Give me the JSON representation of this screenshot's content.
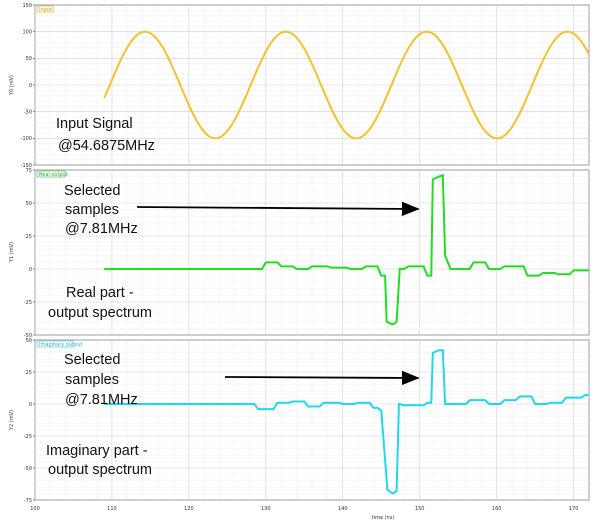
{
  "chart_data": [
    {
      "type": "line",
      "legend": "Input",
      "ylabel": "Y0 (mV)",
      "ylim": [
        -150,
        150
      ],
      "yticks": [
        "150",
        "100",
        "50",
        "0",
        "-50",
        "-100",
        "-150"
      ],
      "color": "#f2c12e",
      "x": [
        100,
        172
      ],
      "amplitude": 100,
      "peaks_at": [
        114.3,
        132.6,
        151.0,
        169.2
      ],
      "annotation": [
        "Input Signal",
        "@54.6875MHz"
      ]
    },
    {
      "type": "line",
      "legend": "Real output",
      "ylabel": "Y1 (mV)",
      "ylim": [
        -50,
        75
      ],
      "yticks": [
        "75",
        "50",
        "25",
        "0",
        "-25",
        "-50"
      ],
      "color": "#22dd22",
      "series": [
        {
          "name": "Real output",
          "points": [
            [
              109.0,
              0
            ],
            [
              129.5,
              0
            ],
            [
              130.0,
              5
            ],
            [
              131.5,
              5
            ],
            [
              132.0,
              2
            ],
            [
              133.5,
              2
            ],
            [
              134.0,
              0
            ],
            [
              135.5,
              0
            ],
            [
              136.0,
              2
            ],
            [
              138.0,
              2
            ],
            [
              138.5,
              1
            ],
            [
              140.5,
              1
            ],
            [
              141.0,
              0
            ],
            [
              142.5,
              0
            ],
            [
              143.0,
              2
            ],
            [
              144.5,
              2
            ],
            [
              145.0,
              -5
            ],
            [
              145.5,
              -5
            ],
            [
              145.7,
              -40
            ],
            [
              146.5,
              -42
            ],
            [
              147.0,
              -40
            ],
            [
              147.4,
              0
            ],
            [
              148.0,
              0
            ],
            [
              148.5,
              2
            ],
            [
              150.5,
              2
            ],
            [
              151.0,
              -5
            ],
            [
              151.5,
              -5
            ],
            [
              151.7,
              68
            ],
            [
              152.5,
              70
            ],
            [
              153.0,
              71
            ],
            [
              153.3,
              10
            ],
            [
              154.0,
              0
            ],
            [
              156.5,
              0
            ],
            [
              157.0,
              5
            ],
            [
              158.5,
              5
            ],
            [
              159.0,
              0
            ],
            [
              160.5,
              0
            ],
            [
              161.0,
              2
            ],
            [
              163.5,
              2
            ],
            [
              164.0,
              -5
            ],
            [
              165.5,
              -5
            ],
            [
              166.0,
              -3
            ],
            [
              167.5,
              -3
            ],
            [
              168.0,
              -4
            ],
            [
              169.5,
              -4
            ],
            [
              170.0,
              -1
            ],
            [
              172.0,
              -1
            ]
          ]
        }
      ],
      "annotation": [
        "Selected",
        "samples",
        "@7.81MHz",
        "Real part -",
        "output spectrum"
      ]
    },
    {
      "type": "line",
      "legend": "Imaginary output",
      "ylabel": "Y2 (mV)",
      "ylim": [
        -75,
        50
      ],
      "yticks": [
        "50",
        "25",
        "0",
        "-25",
        "-50",
        "-75"
      ],
      "color": "#22d8e8",
      "series": [
        {
          "name": "Imaginary output",
          "points": [
            [
              109.0,
              0
            ],
            [
              128.5,
              0
            ],
            [
              129.0,
              -4
            ],
            [
              131.0,
              -4
            ],
            [
              131.5,
              1
            ],
            [
              133.0,
              1
            ],
            [
              133.5,
              2
            ],
            [
              135.0,
              2
            ],
            [
              135.5,
              -2
            ],
            [
              137.0,
              -2
            ],
            [
              137.5,
              1
            ],
            [
              139.5,
              1
            ],
            [
              140.0,
              0
            ],
            [
              141.5,
              0
            ],
            [
              142.0,
              1
            ],
            [
              143.5,
              1
            ],
            [
              144.0,
              -3
            ],
            [
              144.5,
              -3
            ],
            [
              145.0,
              -5
            ],
            [
              145.8,
              -67
            ],
            [
              146.5,
              -70
            ],
            [
              147.0,
              -68
            ],
            [
              147.3,
              0
            ],
            [
              148.0,
              -1
            ],
            [
              150.5,
              -1
            ],
            [
              151.0,
              1
            ],
            [
              151.5,
              1
            ],
            [
              151.7,
              40
            ],
            [
              152.5,
              42
            ],
            [
              153.0,
              42
            ],
            [
              153.3,
              0
            ],
            [
              154.0,
              0
            ],
            [
              156.0,
              0
            ],
            [
              156.5,
              3
            ],
            [
              158.5,
              3
            ],
            [
              159.0,
              0
            ],
            [
              160.5,
              0
            ],
            [
              161.0,
              3
            ],
            [
              162.5,
              3
            ],
            [
              163.0,
              6
            ],
            [
              164.5,
              6
            ],
            [
              165.0,
              0
            ],
            [
              166.5,
              0
            ],
            [
              167.0,
              1
            ],
            [
              168.5,
              1
            ],
            [
              169.0,
              5
            ],
            [
              171.0,
              5
            ],
            [
              171.5,
              7
            ],
            [
              172.0,
              7
            ]
          ]
        }
      ],
      "annotation": [
        "Selected",
        "samples",
        "@7.81MHz",
        "Imaginary part -",
        "output spectrum"
      ]
    }
  ],
  "x_axis": {
    "label": "time (ns)",
    "ticks": [
      "100",
      "110",
      "120",
      "130",
      "140",
      "150",
      "160",
      "170"
    ],
    "xlim": [
      100,
      172
    ]
  }
}
